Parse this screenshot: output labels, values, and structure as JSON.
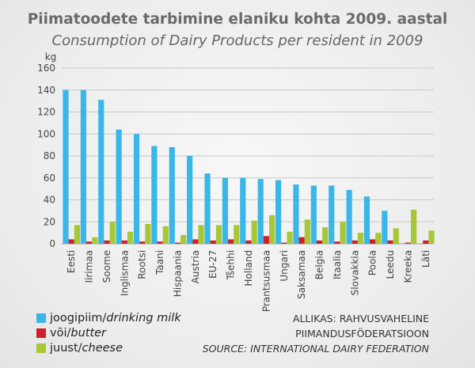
{
  "title": "Piimatoodete tarbimine elaniku kohta 2009. aastal",
  "subtitle": "Consumption of Dairy Products per resident in 2009",
  "source": {
    "line1": "ALLIKAS: RAHVUSVAHELINE",
    "line2": "PIIMANDUSFÖDERATSIOON",
    "line3": "SOURCE: INTERNATIONAL DAIRY FEDERATION"
  },
  "legend": [
    {
      "et": "joogipiim/",
      "en": "drinking milk",
      "color": "#3ab7e8"
    },
    {
      "et": "või/",
      "en": "butter",
      "color": "#d0202a"
    },
    {
      "et": "juust/",
      "en": "cheese",
      "color": "#a6c837"
    }
  ],
  "chart_data": {
    "type": "bar",
    "ylabel": "kg",
    "ylim": [
      0,
      160
    ],
    "yticks": [
      0,
      20,
      40,
      60,
      80,
      100,
      120,
      140,
      160
    ],
    "grid": true,
    "legend_position": "bottom-left",
    "categories": [
      "Eesti",
      "Iirimaa",
      "Soome",
      "Inglismaa",
      "Rootsi",
      "Taani",
      "Hispaania",
      "Austria",
      "EU-27",
      "Tšehhi",
      "Holland",
      "Prantsusmaa",
      "Ungari",
      "Saksamaa",
      "Belgia",
      "Itaalia",
      "Slovakkia",
      "Poola",
      "Leedu",
      "Kreeka",
      "Läti"
    ],
    "series": [
      {
        "name": "joogipiim/drinking milk",
        "color": "#3ab7e8",
        "values": [
          140,
          140,
          131,
          104,
          100,
          89,
          88,
          80,
          64,
          60,
          60,
          59,
          58,
          54,
          53,
          53,
          49,
          43,
          30,
          0,
          0
        ]
      },
      {
        "name": "või/butter",
        "color": "#d0202a",
        "values": [
          4,
          2,
          3,
          3,
          2,
          2,
          1,
          4,
          3,
          4,
          3,
          7,
          1,
          6,
          3,
          2,
          3,
          4,
          3,
          1,
          3
        ]
      },
      {
        "name": "juust/cheese",
        "color": "#a6c837",
        "values": [
          17,
          6,
          20,
          11,
          18,
          16,
          8,
          17,
          17,
          17,
          21,
          26,
          11,
          22,
          15,
          20,
          10,
          10,
          14,
          31,
          12
        ]
      }
    ]
  }
}
